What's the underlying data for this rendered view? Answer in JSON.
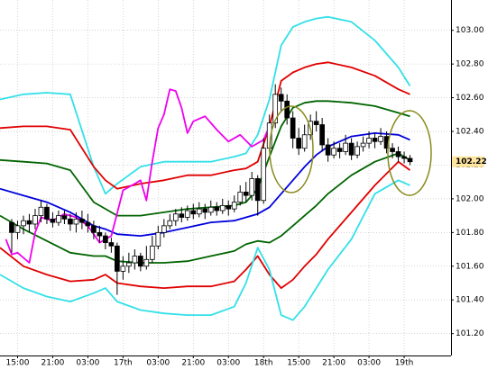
{
  "chart_data": {
    "type": "candlestick",
    "x": [
      0,
      1,
      2,
      3,
      4,
      5,
      6,
      7,
      8,
      9,
      10,
      11,
      12,
      13,
      14,
      15,
      16,
      17,
      18,
      19,
      20,
      21,
      22,
      23,
      24,
      25,
      26,
      27,
      28,
      29,
      30,
      31,
      32,
      33,
      34,
      35,
      36,
      37,
      38,
      39,
      40,
      41,
      42,
      43,
      44,
      45,
      46,
      47,
      48,
      49,
      50,
      51,
      52,
      53,
      54,
      55,
      56,
      57,
      58,
      59,
      60,
      61,
      62,
      63,
      64,
      65,
      66,
      67,
      68
    ],
    "open": [
      101.86,
      101.8,
      101.84,
      101.87,
      101.85,
      101.9,
      101.95,
      101.88,
      101.86,
      101.9,
      101.88,
      101.85,
      101.88,
      101.86,
      101.84,
      101.8,
      101.78,
      101.74,
      101.72,
      101.57,
      101.6,
      101.62,
      101.66,
      101.6,
      101.64,
      101.72,
      101.8,
      101.84,
      101.87,
      101.91,
      101.89,
      101.93,
      101.91,
      101.94,
      101.92,
      101.95,
      101.93,
      101.96,
      101.94,
      101.98,
      102.04,
      102.02,
      102.12,
      101.99,
      102.3,
      102.45,
      102.62,
      102.58,
      102.48,
      102.36,
      102.3,
      102.38,
      102.46,
      102.44,
      102.32,
      102.26,
      102.3,
      102.28,
      102.33,
      102.26,
      102.31,
      102.33,
      102.36,
      102.34,
      102.37,
      102.3,
      102.28,
      102.25,
      102.24
    ],
    "high": [
      101.88,
      101.87,
      101.9,
      101.91,
      101.94,
      101.99,
      101.97,
      101.92,
      101.93,
      101.93,
      101.91,
      101.92,
      101.93,
      101.91,
      101.87,
      101.84,
      101.8,
      101.77,
      101.74,
      101.66,
      101.68,
      101.7,
      101.68,
      101.72,
      101.78,
      101.84,
      101.88,
      101.91,
      101.94,
      101.95,
      101.96,
      101.97,
      101.98,
      101.97,
      101.99,
      101.98,
      102.0,
      101.99,
      102.02,
      102.08,
      102.1,
      102.16,
      102.14,
      102.36,
      102.5,
      102.68,
      102.66,
      102.62,
      102.52,
      102.42,
      102.44,
      102.5,
      102.52,
      102.48,
      102.36,
      102.34,
      102.33,
      102.38,
      102.36,
      102.34,
      102.37,
      102.4,
      102.39,
      102.42,
      102.4,
      102.33,
      102.31,
      102.28,
      102.26
    ],
    "low": [
      101.68,
      101.76,
      101.79,
      101.8,
      101.82,
      101.86,
      101.85,
      101.83,
      101.84,
      101.85,
      101.81,
      101.8,
      101.82,
      101.8,
      101.76,
      101.74,
      101.7,
      101.68,
      101.43,
      101.52,
      101.56,
      101.58,
      101.57,
      101.58,
      101.62,
      101.7,
      101.77,
      101.82,
      101.84,
      101.86,
      101.87,
      101.88,
      101.89,
      101.88,
      101.9,
      101.9,
      101.91,
      101.9,
      101.92,
      101.96,
      101.98,
      101.99,
      101.9,
      101.97,
      102.28,
      102.42,
      102.52,
      102.44,
      102.3,
      102.26,
      102.28,
      102.35,
      102.4,
      102.28,
      102.22,
      102.24,
      102.24,
      102.26,
      102.23,
      102.24,
      102.28,
      102.3,
      102.3,
      102.32,
      102.27,
      102.24,
      102.22,
      102.21,
      102.2
    ],
    "close": [
      101.8,
      101.84,
      101.87,
      101.85,
      101.9,
      101.95,
      101.88,
      101.86,
      101.9,
      101.88,
      101.85,
      101.88,
      101.86,
      101.84,
      101.8,
      101.78,
      101.74,
      101.72,
      101.57,
      101.6,
      101.62,
      101.66,
      101.6,
      101.64,
      101.72,
      101.8,
      101.84,
      101.87,
      101.91,
      101.89,
      101.93,
      101.91,
      101.94,
      101.92,
      101.95,
      101.93,
      101.96,
      101.94,
      101.98,
      102.04,
      102.02,
      102.12,
      101.99,
      102.3,
      102.45,
      102.62,
      102.58,
      102.48,
      102.36,
      102.3,
      102.38,
      102.46,
      102.44,
      102.32,
      102.26,
      102.3,
      102.28,
      102.33,
      102.26,
      102.31,
      102.33,
      102.36,
      102.34,
      102.37,
      102.3,
      102.28,
      102.25,
      102.24,
      102.22
    ],
    "up_color": "#ffffff",
    "down_color": "#000000",
    "wick_color": "#000000",
    "series": [
      {
        "color": "#33e0e8",
        "x": [
          -2,
          2,
          6,
          10,
          14,
          16,
          18,
          22,
          26,
          30,
          34,
          38,
          40,
          42,
          44,
          46,
          48,
          50,
          52,
          54,
          58,
          62,
          66,
          68
        ],
        "values": [
          102.59,
          102.62,
          102.63,
          102.62,
          102.19,
          102.03,
          102.09,
          102.19,
          102.22,
          102.22,
          102.22,
          102.25,
          102.27,
          102.38,
          102.59,
          102.91,
          103.02,
          103.05,
          103.07,
          103.08,
          103.05,
          102.94,
          102.78,
          102.67
        ]
      },
      {
        "color": "#e00000",
        "x": [
          -2,
          2,
          6,
          10,
          14,
          16,
          18,
          22,
          26,
          30,
          34,
          38,
          40,
          42,
          44,
          46,
          48,
          50,
          52,
          54,
          58,
          62,
          66,
          68
        ],
        "values": [
          102.42,
          102.43,
          102.43,
          102.41,
          102.19,
          102.11,
          102.06,
          102.09,
          102.11,
          102.14,
          102.14,
          102.17,
          102.18,
          102.22,
          102.43,
          102.7,
          102.75,
          102.78,
          102.8,
          102.81,
          102.78,
          102.73,
          102.65,
          102.62
        ]
      },
      {
        "color": "#006400",
        "x": [
          -2,
          2,
          6,
          10,
          14,
          16,
          18,
          22,
          26,
          30,
          34,
          38,
          40,
          42,
          44,
          46,
          48,
          50,
          52,
          54,
          58,
          62,
          66,
          68
        ],
        "values": [
          102.23,
          102.22,
          102.21,
          102.17,
          101.98,
          101.94,
          101.9,
          101.9,
          101.92,
          101.94,
          101.95,
          101.96,
          101.98,
          102.06,
          102.25,
          102.43,
          102.54,
          102.57,
          102.58,
          102.58,
          102.57,
          102.55,
          102.51,
          102.49
        ]
      },
      {
        "color": "#0000dd",
        "x": [
          -2,
          2,
          6,
          10,
          14,
          16,
          18,
          22,
          26,
          30,
          34,
          38,
          40,
          42,
          44,
          46,
          48,
          50,
          52,
          54,
          58,
          62,
          66,
          68
        ],
        "values": [
          102.06,
          102.02,
          101.98,
          101.92,
          101.84,
          101.82,
          101.79,
          101.78,
          101.8,
          101.83,
          101.86,
          101.87,
          101.89,
          101.91,
          101.95,
          102.03,
          102.11,
          102.19,
          102.26,
          102.31,
          102.37,
          102.39,
          102.38,
          102.35
        ]
      },
      {
        "color": "#006400",
        "x": [
          -2,
          2,
          6,
          10,
          14,
          16,
          18,
          22,
          26,
          30,
          34,
          38,
          40,
          42,
          44,
          46,
          48,
          50,
          52,
          54,
          58,
          62,
          66,
          68
        ],
        "values": [
          101.9,
          101.82,
          101.75,
          101.68,
          101.66,
          101.66,
          101.63,
          101.62,
          101.62,
          101.63,
          101.66,
          101.69,
          101.73,
          101.75,
          101.74,
          101.78,
          101.84,
          101.9,
          101.96,
          102.03,
          102.14,
          102.22,
          102.27,
          102.23
        ]
      },
      {
        "color": "#e00000",
        "x": [
          -2,
          2,
          6,
          10,
          14,
          16,
          18,
          22,
          26,
          30,
          34,
          38,
          40,
          42,
          44,
          46,
          48,
          50,
          52,
          54,
          58,
          62,
          66,
          68
        ],
        "values": [
          101.71,
          101.6,
          101.55,
          101.51,
          101.52,
          101.55,
          101.5,
          101.48,
          101.47,
          101.48,
          101.48,
          101.51,
          101.58,
          101.66,
          101.55,
          101.47,
          101.52,
          101.6,
          101.67,
          101.76,
          101.92,
          102.08,
          102.22,
          102.17
        ]
      },
      {
        "color": "#33e0e8",
        "x": [
          -2,
          2,
          6,
          10,
          14,
          16,
          18,
          22,
          26,
          30,
          34,
          38,
          40,
          42,
          44,
          46,
          48,
          50,
          52,
          54,
          58,
          62,
          66,
          68
        ],
        "values": [
          101.55,
          101.47,
          101.42,
          101.39,
          101.44,
          101.47,
          101.39,
          101.34,
          101.32,
          101.31,
          101.31,
          101.36,
          101.5,
          101.71,
          101.58,
          101.31,
          101.28,
          101.36,
          101.47,
          101.58,
          101.76,
          102.03,
          102.11,
          102.08
        ]
      },
      {
        "color": "#ee00ee",
        "x": [
          -1,
          0,
          1,
          3,
          4,
          5,
          7,
          9,
          11,
          13,
          15,
          17,
          19,
          21,
          22,
          23,
          24,
          25,
          26,
          27,
          28,
          29,
          30,
          31,
          33,
          35,
          37,
          39,
          41,
          43,
          44
        ],
        "values": [
          101.76,
          101.67,
          101.68,
          101.62,
          101.8,
          101.89,
          101.87,
          101.91,
          101.89,
          101.84,
          101.74,
          101.78,
          102.05,
          102.09,
          102.11,
          101.99,
          102.22,
          102.42,
          102.5,
          102.65,
          102.64,
          102.54,
          102.39,
          102.46,
          102.49,
          102.41,
          102.34,
          102.38,
          102.31,
          102.35,
          102.43
        ]
      }
    ],
    "xlim": [
      -2,
      75
    ],
    "ylim": [
      101.07,
      103.18
    ],
    "xticks": [
      {
        "value": 1,
        "label": "15:00"
      },
      {
        "value": 7,
        "label": "21:00"
      },
      {
        "value": 13,
        "label": "03:00"
      },
      {
        "value": 19,
        "label": "17th"
      },
      {
        "value": 25,
        "label": "03:00"
      },
      {
        "value": 31,
        "label": "21:00"
      },
      {
        "value": 37,
        "label": "03:00"
      },
      {
        "value": 43,
        "label": "18th"
      },
      {
        "value": 49,
        "label": "15:00"
      },
      {
        "value": 55,
        "label": "21:00"
      },
      {
        "value": 61,
        "label": "03:00"
      },
      {
        "value": 67,
        "label": "19th"
      }
    ],
    "yticks": [
      {
        "value": 101.2,
        "label": "101.20"
      },
      {
        "value": 101.4,
        "label": "101.40"
      },
      {
        "value": 101.6,
        "label": "101.60"
      },
      {
        "value": 101.8,
        "label": "101.80"
      },
      {
        "value": 102.0,
        "label": "102.00"
      },
      {
        "value": 102.2,
        "label": "102.20"
      },
      {
        "value": 102.4,
        "label": "102.40"
      },
      {
        "value": 102.6,
        "label": "102.60"
      },
      {
        "value": 102.8,
        "label": "102.80"
      },
      {
        "value": 103.0,
        "label": "103.00"
      }
    ],
    "grid": true,
    "last_price": {
      "value": 102.22,
      "label": "102.22"
    }
  }
}
